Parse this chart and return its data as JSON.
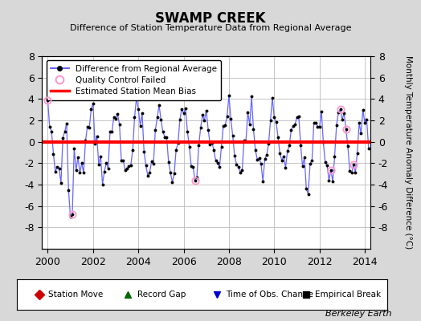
{
  "title": "SWAMP CREEK",
  "subtitle": "Difference of Station Temperature Data from Regional Average",
  "ylabel_right": "Monthly Temperature Anomaly Difference (°C)",
  "x_start": 1999.75,
  "x_end": 2014.25,
  "y_min": -10,
  "y_max": 8,
  "y_ticks": [
    -8,
    -6,
    -4,
    -2,
    0,
    2,
    4,
    6,
    8
  ],
  "x_ticks": [
    2000,
    2002,
    2004,
    2006,
    2008,
    2010,
    2012,
    2014
  ],
  "bias_value": -0.05,
  "line_color": "#6666FF",
  "dot_color": "#000000",
  "bias_color": "#FF0000",
  "qc_color": "#FF99CC",
  "background_color": "#D8D8D8",
  "plot_bg_color": "#FFFFFF",
  "grid_color": "#BBBBBB",
  "legend_items": [
    {
      "label": "Difference from Regional Average"
    },
    {
      "label": "Quality Control Failed"
    },
    {
      "label": "Estimated Station Mean Bias"
    }
  ],
  "bottom_legend": [
    {
      "label": "Station Move",
      "color": "#CC0000",
      "marker": "D"
    },
    {
      "label": "Record Gap",
      "color": "#006600",
      "marker": "^"
    },
    {
      "label": "Time of Obs. Change",
      "color": "#0000CC",
      "marker": "v"
    },
    {
      "label": "Empirical Break",
      "color": "#000000",
      "marker": "s"
    }
  ],
  "watermark": "Berkeley Earth"
}
